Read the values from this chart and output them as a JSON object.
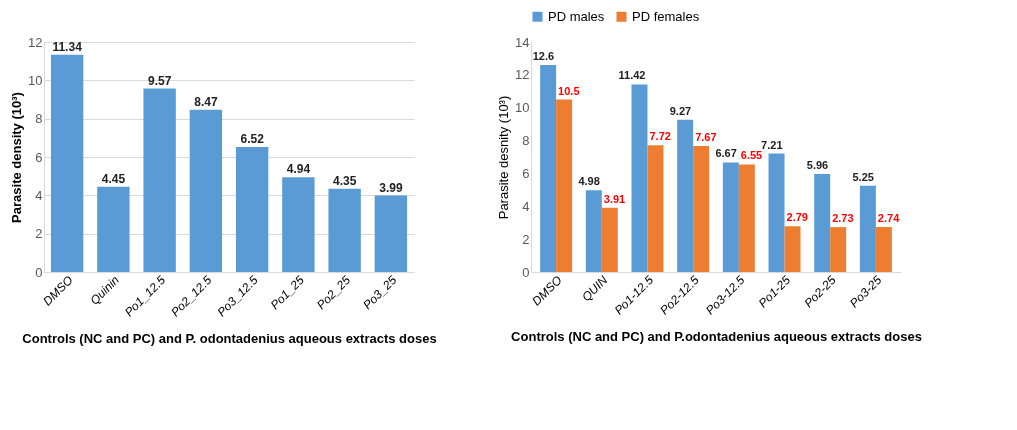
{
  "chart_data": [
    {
      "type": "bar",
      "xlabel": "Controls (NC and PC) and P. odontadenius aqueous extracts doses",
      "ylabel": "Parasite density (10³)",
      "categories": [
        "DMSO",
        "Quinin",
        "Po1_12.5",
        "Po2_12.5",
        "Po3_12.5",
        "Po1_25",
        "Po2_25",
        "Po3_25"
      ],
      "values": [
        11.34,
        4.45,
        9.57,
        8.47,
        6.52,
        4.94,
        4.35,
        3.99
      ],
      "color": "#5b9bd5",
      "ylim": [
        0,
        12
      ],
      "yticks": [
        0,
        2,
        4,
        6,
        8,
        10,
        12
      ],
      "grid": "y",
      "data_labels": true
    },
    {
      "type": "bar",
      "xlabel": "Controls (NC and PC) and P.odontadenius aqueous extracts doses",
      "ylabel": "Parasite desnity (10³)",
      "categories": [
        "DMSO",
        "QUIN",
        "Po1-12.5",
        "Po2-12.5",
        "Po3-12.5",
        "Po1-25",
        "Po2-25",
        "Po3-25"
      ],
      "series": [
        {
          "name": "PD males",
          "color": "#5b9bd5",
          "values": [
            12.6,
            4.98,
            11.42,
            9.27,
            6.67,
            7.21,
            5.96,
            5.25
          ]
        },
        {
          "name": "PD females",
          "color": "#ed7d31",
          "values": [
            10.5,
            3.91,
            7.72,
            7.67,
            6.55,
            2.79,
            2.73,
            2.74
          ]
        }
      ],
      "ylim": [
        0,
        14
      ],
      "yticks": [
        0,
        2,
        4,
        6,
        8,
        10,
        12,
        14
      ],
      "legend": "top",
      "data_labels": true
    }
  ]
}
